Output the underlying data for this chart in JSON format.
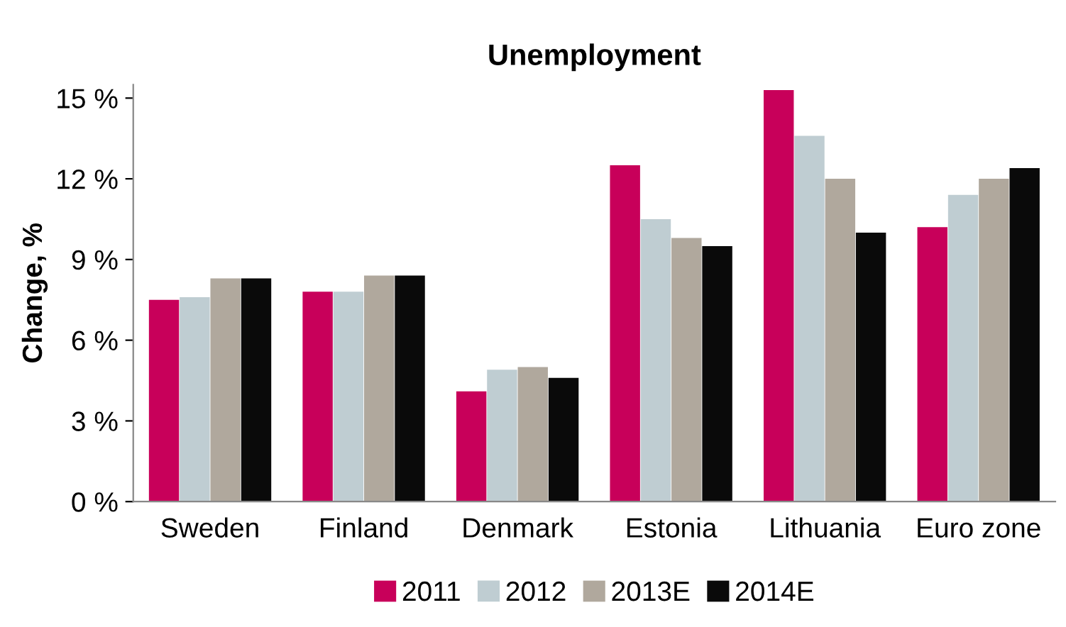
{
  "chart_data": {
    "type": "bar",
    "title": "Unemployment",
    "ylabel": "Change, %",
    "categories": [
      "Sweden",
      "Finland",
      "Denmark",
      "Estonia",
      "Lithuania",
      "Euro zone"
    ],
    "series": [
      {
        "name": "2011",
        "color": "#c8005a",
        "values": [
          7.5,
          7.8,
          4.1,
          12.5,
          15.3,
          10.2
        ]
      },
      {
        "name": "2012",
        "color": "#bfcdd2",
        "values": [
          7.6,
          7.8,
          4.9,
          10.5,
          13.6,
          11.4
        ]
      },
      {
        "name": "2013E",
        "color": "#b0a89d",
        "values": [
          8.3,
          8.4,
          5.0,
          9.8,
          12.0,
          12.0
        ]
      },
      {
        "name": "2014E",
        "color": "#0a0a0a",
        "values": [
          8.3,
          8.4,
          4.6,
          9.5,
          10.0,
          12.4
        ]
      }
    ],
    "ylim": [
      0,
      15.5
    ],
    "yticks": [
      {
        "value": 0,
        "label": "0 %"
      },
      {
        "value": 3,
        "label": "3 %"
      },
      {
        "value": 6,
        "label": "6 %"
      },
      {
        "value": 9,
        "label": "9 %"
      },
      {
        "value": 12,
        "label": "12 %"
      },
      {
        "value": 15,
        "label": "15 %"
      }
    ],
    "grid": false,
    "legend": "bottom"
  }
}
